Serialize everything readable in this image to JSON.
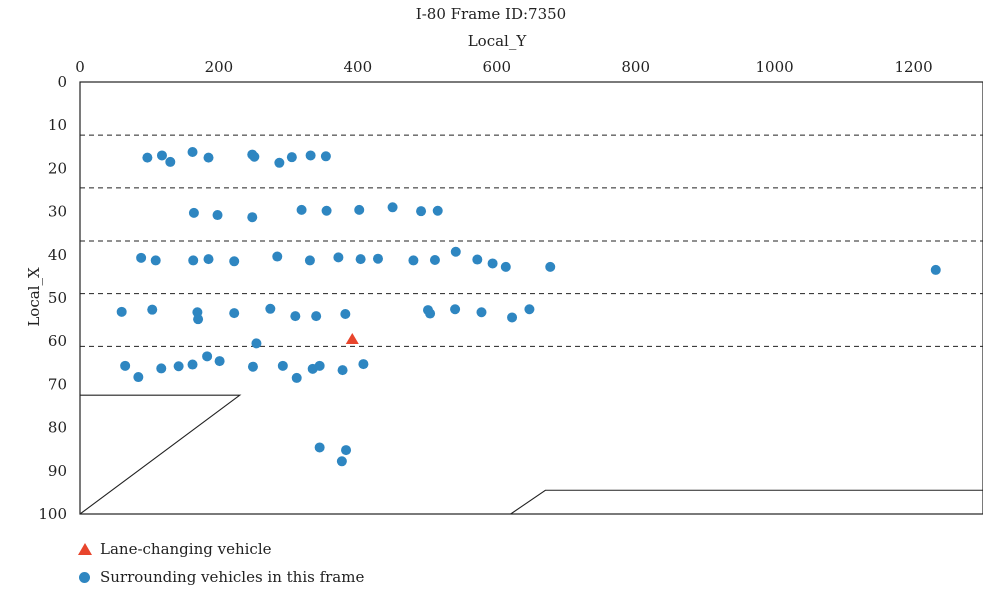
{
  "chart_data": {
    "type": "scatter",
    "title": "I-80 Frame ID:7350",
    "xlabel": "Local_Y",
    "ylabel": "Local_X",
    "xlim": [
      0,
      1300
    ],
    "ylim": [
      0,
      100
    ],
    "y_inverted": true,
    "x_axis_position": "top",
    "xticks": [
      0,
      200,
      400,
      600,
      800,
      1000,
      1200
    ],
    "yticks": [
      0,
      10,
      20,
      30,
      40,
      50,
      60,
      70,
      80,
      90,
      100
    ],
    "lane_lines_y": [
      12.3,
      24.5,
      36.8,
      49,
      61.2
    ],
    "road_edges": [
      [
        [
          0,
          72.5
        ],
        [
          230,
          72.5
        ],
        [
          0,
          100
        ]
      ],
      [
        [
          620,
          100
        ],
        [
          670,
          94.5
        ],
        [
          1300,
          94.5
        ]
      ]
    ],
    "series": [
      {
        "name": "Lane-changing vehicle",
        "marker": "triangle",
        "color": "#e8452c",
        "points": [
          [
            392,
            59.5
          ]
        ]
      },
      {
        "name": "Surrounding vehicles in this frame",
        "marker": "circle",
        "color": "#2e86c1",
        "points": [
          [
            97,
            17.5
          ],
          [
            118,
            17
          ],
          [
            130,
            18.5
          ],
          [
            162,
            16.2
          ],
          [
            185,
            17.5
          ],
          [
            248,
            16.8
          ],
          [
            251,
            17.3
          ],
          [
            287,
            18.7
          ],
          [
            305,
            17.4
          ],
          [
            332,
            17
          ],
          [
            354,
            17.2
          ],
          [
            164,
            30.3
          ],
          [
            198,
            30.8
          ],
          [
            248,
            31.3
          ],
          [
            319,
            29.6
          ],
          [
            355,
            29.8
          ],
          [
            402,
            29.6
          ],
          [
            450,
            29
          ],
          [
            491,
            29.9
          ],
          [
            515,
            29.8
          ],
          [
            88,
            40.7
          ],
          [
            109,
            41.3
          ],
          [
            163,
            41.3
          ],
          [
            185,
            41
          ],
          [
            222,
            41.5
          ],
          [
            284,
            40.4
          ],
          [
            331,
            41.3
          ],
          [
            372,
            40.6
          ],
          [
            404,
            41
          ],
          [
            429,
            40.9
          ],
          [
            480,
            41.3
          ],
          [
            511,
            41.2
          ],
          [
            541,
            39.3
          ],
          [
            572,
            41.1
          ],
          [
            594,
            42
          ],
          [
            613,
            42.8
          ],
          [
            677,
            42.8
          ],
          [
            1232,
            43.5
          ],
          [
            60,
            53.2
          ],
          [
            104,
            52.7
          ],
          [
            169,
            53.3
          ],
          [
            170,
            54.9
          ],
          [
            222,
            53.5
          ],
          [
            274,
            52.5
          ],
          [
            310,
            54.2
          ],
          [
            340,
            54.2
          ],
          [
            382,
            53.7
          ],
          [
            501,
            52.8
          ],
          [
            504,
            53.6
          ],
          [
            540,
            52.6
          ],
          [
            578,
            53.3
          ],
          [
            622,
            54.5
          ],
          [
            647,
            52.6
          ],
          [
            254,
            60.5
          ],
          [
            65,
            65.7
          ],
          [
            84,
            68.3
          ],
          [
            117,
            66.3
          ],
          [
            142,
            65.8
          ],
          [
            162,
            65.4
          ],
          [
            183,
            63.5
          ],
          [
            201,
            64.6
          ],
          [
            249,
            65.9
          ],
          [
            292,
            65.7
          ],
          [
            312,
            68.5
          ],
          [
            335,
            66.4
          ],
          [
            345,
            65.7
          ],
          [
            378,
            66.7
          ],
          [
            408,
            65.3
          ],
          [
            345,
            84.6
          ],
          [
            383,
            85.2
          ],
          [
            377,
            87.8
          ]
        ]
      }
    ],
    "legend_position": "bottom-left"
  },
  "legend": {
    "lane_changing_label": "Lane-changing vehicle",
    "surrounding_label": "Surrounding vehicles in this frame"
  }
}
